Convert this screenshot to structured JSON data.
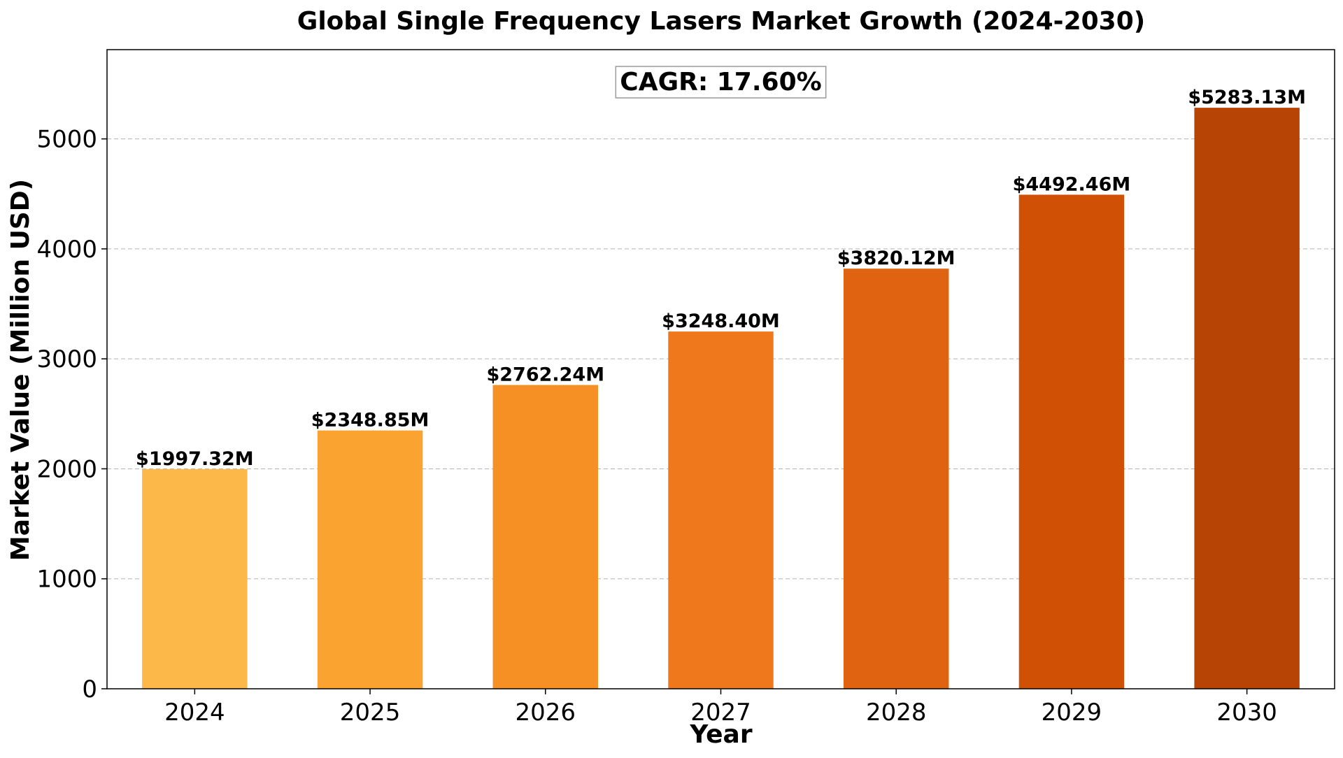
{
  "chart_data": {
    "type": "bar",
    "title": "Global Single Frequency Lasers Market Growth (2024-2030)",
    "xlabel": "Year",
    "ylabel": "Market Value (Million USD)",
    "categories": [
      "2024",
      "2025",
      "2026",
      "2027",
      "2028",
      "2029",
      "2030"
    ],
    "values": [
      1997.32,
      2348.85,
      2762.24,
      3248.4,
      3820.12,
      4492.46,
      5283.13
    ],
    "data_labels": [
      "$1997.32M",
      "$2348.85M",
      "$2762.24M",
      "$3248.40M",
      "$3820.12M",
      "$4492.46M",
      "$5283.13M"
    ],
    "bar_colors": [
      "#FDB84A",
      "#FBA331",
      "#F68F24",
      "#EE781B",
      "#E06312",
      "#D05005",
      "#B74305"
    ],
    "ylim": [
      0,
      5811.44
    ],
    "yticks": [
      0,
      1000,
      2000,
      3000,
      4000,
      5000
    ],
    "grid": "y-dashed",
    "annotation": "CAGR: 17.60%"
  }
}
